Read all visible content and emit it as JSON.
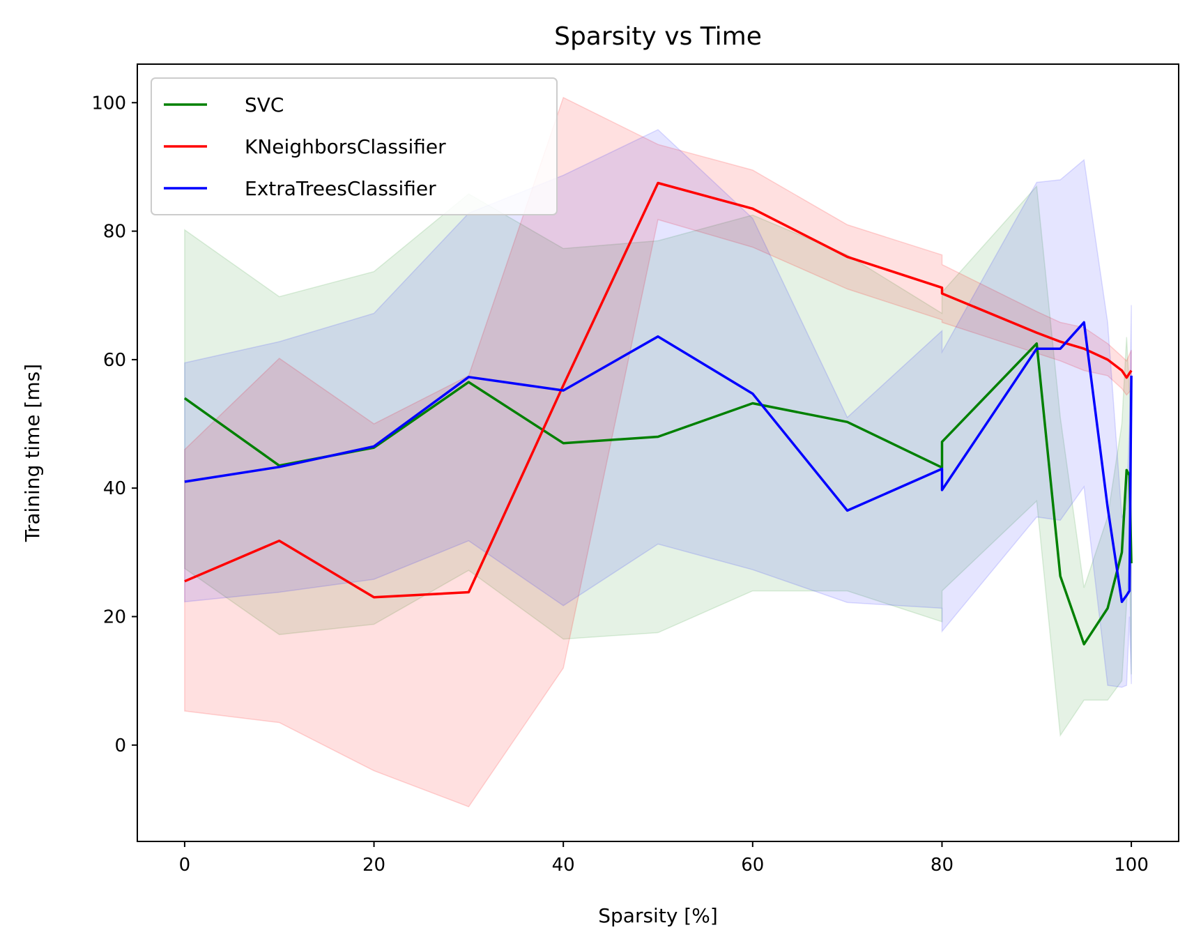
{
  "chart_data": {
    "type": "line",
    "title": "Sparsity vs Time",
    "xlabel": "Sparsity [%]",
    "ylabel": "Training time [ms]",
    "xlim": [
      -5,
      105
    ],
    "ylim": [
      -15,
      106
    ],
    "xticks": [
      0,
      20,
      40,
      60,
      80,
      100
    ],
    "yticks": [
      0,
      20,
      40,
      60,
      80,
      100
    ],
    "grid": false,
    "legend_position": "top-left",
    "series": [
      {
        "name": "SVC",
        "color": "#008000",
        "band_opacity": 0.1,
        "x": [
          0,
          10,
          20,
          30,
          40,
          50,
          60,
          70,
          80,
          80,
          90,
          92.5,
          95,
          97.5,
          99,
          99.5,
          99.8,
          100
        ],
        "y": [
          54,
          43.5,
          46.3,
          56.5,
          47,
          48,
          53.2,
          50.3,
          43.2,
          47.2,
          62.5,
          26.3,
          15.7,
          21.3,
          30,
          42.8,
          42,
          28.3
        ],
        "lower": [
          27.5,
          17.2,
          18.8,
          27.2,
          16.5,
          17.5,
          24,
          24,
          19.2,
          24,
          38,
          1.5,
          7,
          7,
          10,
          22,
          30,
          11
        ],
        "upper": [
          80.2,
          69.8,
          73.7,
          85.8,
          77.3,
          78.5,
          82.5,
          76.3,
          67.2,
          70.5,
          87,
          51,
          24.5,
          35.5,
          50,
          63.5,
          55,
          45.5
        ]
      },
      {
        "name": "KNeighborsClassifier",
        "color": "#ff0000",
        "band_opacity": 0.12,
        "x": [
          0,
          10,
          20,
          30,
          40,
          50,
          60,
          70,
          80,
          80,
          90,
          92.5,
          95,
          97.5,
          99,
          99.5,
          100
        ],
        "y": [
          25.5,
          31.8,
          23,
          23.8,
          56,
          87.5,
          83.5,
          76,
          71.2,
          70.3,
          64.2,
          62.8,
          61.7,
          60,
          58.3,
          57.2,
          58.3
        ],
        "lower": [
          5.3,
          3.5,
          -4,
          -9.6,
          12,
          81.8,
          77.5,
          71,
          66.2,
          65.8,
          61,
          59.8,
          58.3,
          57.5,
          55.5,
          54.5,
          55.3
        ],
        "upper": [
          46,
          60.2,
          50,
          57.5,
          100.8,
          93.5,
          89.5,
          81,
          76.3,
          74.8,
          67.5,
          65.8,
          65,
          62.5,
          60.5,
          59.8,
          61.5
        ]
      },
      {
        "name": "ExtraTreesClassifier",
        "color": "#0000ff",
        "band_opacity": 0.1,
        "x": [
          0,
          10,
          20,
          30,
          40,
          50,
          60,
          70,
          80,
          80,
          90,
          92.5,
          95,
          97.5,
          99,
          99.5,
          99.8,
          100
        ],
        "y": [
          41,
          43.3,
          46.5,
          57.3,
          55.2,
          63.6,
          54.7,
          36.5,
          43,
          39.7,
          61.7,
          61.7,
          65.8,
          37,
          22.3,
          23.3,
          24,
          57.5
        ],
        "lower": [
          22.3,
          23.8,
          25.8,
          31.8,
          21.7,
          31.3,
          27.3,
          22.2,
          21.3,
          17.7,
          35.5,
          35,
          40.2,
          9.3,
          9,
          9.3,
          20,
          9.5
        ],
        "upper": [
          59.5,
          62.8,
          67.2,
          82.8,
          88.7,
          95.8,
          82,
          51,
          64.5,
          61.2,
          87.6,
          88,
          91.1,
          65.8,
          35.5,
          37,
          50,
          68.5
        ]
      }
    ]
  }
}
